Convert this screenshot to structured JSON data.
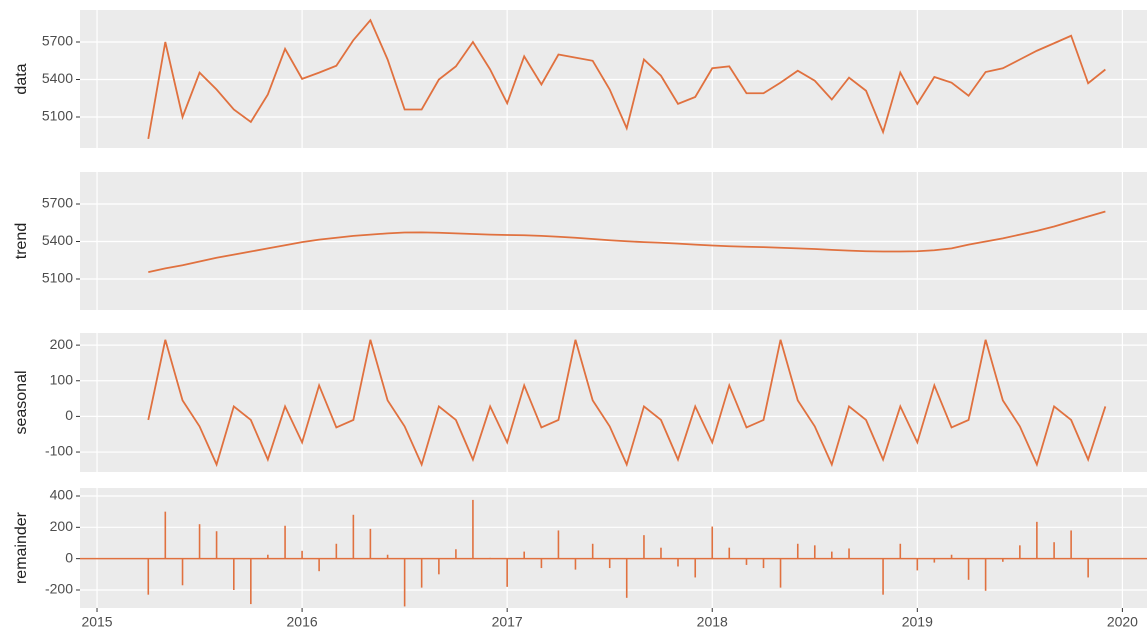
{
  "chart_data": [
    {
      "type": "line",
      "ylabel": "data",
      "color": "#e0713f",
      "grid": true,
      "x": [
        2015.25,
        2015.333,
        2015.417,
        2015.5,
        2015.583,
        2015.667,
        2015.75,
        2015.833,
        2015.917,
        2016,
        2016.083,
        2016.167,
        2016.25,
        2016.333,
        2016.417,
        2016.5,
        2016.583,
        2016.667,
        2016.75,
        2016.833,
        2016.917,
        2017,
        2017.083,
        2017.167,
        2017.25,
        2017.333,
        2017.417,
        2017.5,
        2017.583,
        2017.667,
        2017.75,
        2017.833,
        2017.917,
        2018,
        2018.083,
        2018.167,
        2018.25,
        2018.333,
        2018.417,
        2018.5,
        2018.583,
        2018.667,
        2018.75,
        2018.833,
        2018.917,
        2019,
        2019.083,
        2019.167,
        2019.25,
        2019.333,
        2019.417,
        2019.5,
        2019.583,
        2019.667,
        2019.75,
        2019.833,
        2019.917
      ],
      "values": [
        4925,
        5700,
        5100,
        5455,
        5320,
        5160,
        5060,
        5280,
        5645,
        5405,
        5455,
        5510,
        5715,
        5875,
        5560,
        5160,
        5160,
        5400,
        5505,
        5700,
        5480,
        5210,
        5585,
        5360,
        5600,
        5575,
        5550,
        5320,
        5010,
        5560,
        5430,
        5205,
        5260,
        5490,
        5505,
        5290,
        5290,
        5375,
        5470,
        5390,
        5240,
        5415,
        5310,
        4980,
        5455,
        5205,
        5420,
        5375,
        5270,
        5460,
        5490,
        5560,
        5630,
        5690,
        5750,
        5370,
        5480
      ],
      "xlim": [
        2014.917,
        2020.12
      ],
      "xticks": [
        2015,
        2016,
        2017,
        2018,
        2019,
        2020
      ],
      "ylim": [
        4852,
        5956
      ],
      "yticks": [
        5100,
        5400,
        5700
      ]
    },
    {
      "type": "line",
      "ylabel": "trend",
      "color": "#e0713f",
      "grid": true,
      "x": [
        2015.25,
        2015.333,
        2015.417,
        2015.5,
        2015.583,
        2015.667,
        2015.75,
        2015.833,
        2015.917,
        2016,
        2016.083,
        2016.167,
        2016.25,
        2016.333,
        2016.417,
        2016.5,
        2016.583,
        2016.667,
        2016.75,
        2016.833,
        2016.917,
        2017,
        2017.083,
        2017.167,
        2017.25,
        2017.333,
        2017.417,
        2017.5,
        2017.583,
        2017.667,
        2017.75,
        2017.833,
        2017.917,
        2018,
        2018.083,
        2018.167,
        2018.25,
        2018.333,
        2018.417,
        2018.5,
        2018.583,
        2018.667,
        2018.75,
        2018.833,
        2018.917,
        2019,
        2019.083,
        2019.167,
        2019.25,
        2019.333,
        2019.417,
        2019.5,
        2019.583,
        2019.667,
        2019.75,
        2019.833,
        2019.917
      ],
      "values": [
        5155,
        5185,
        5210,
        5240,
        5270,
        5295,
        5320,
        5345,
        5370,
        5395,
        5415,
        5430,
        5445,
        5455,
        5465,
        5472,
        5473,
        5470,
        5465,
        5460,
        5455,
        5452,
        5450,
        5445,
        5438,
        5430,
        5420,
        5410,
        5402,
        5395,
        5390,
        5383,
        5375,
        5368,
        5362,
        5358,
        5355,
        5350,
        5345,
        5340,
        5333,
        5327,
        5322,
        5320,
        5320,
        5322,
        5330,
        5345,
        5375,
        5400,
        5425,
        5455,
        5485,
        5520,
        5560,
        5600,
        5640
      ],
      "xlim": [
        2014.917,
        2020.12
      ],
      "xticks": [
        2015,
        2016,
        2017,
        2018,
        2019,
        2020
      ],
      "ylim": [
        4852,
        5956
      ],
      "yticks": [
        5100,
        5400,
        5700
      ]
    },
    {
      "type": "line",
      "ylabel": "seasonal",
      "color": "#e0713f",
      "grid": true,
      "x": [
        2015.25,
        2015.333,
        2015.417,
        2015.5,
        2015.583,
        2015.667,
        2015.75,
        2015.833,
        2015.917,
        2016,
        2016.083,
        2016.167,
        2016.25,
        2016.333,
        2016.417,
        2016.5,
        2016.583,
        2016.667,
        2016.75,
        2016.833,
        2016.917,
        2017,
        2017.083,
        2017.167,
        2017.25,
        2017.333,
        2017.417,
        2017.5,
        2017.583,
        2017.667,
        2017.75,
        2017.833,
        2017.917,
        2018,
        2018.083,
        2018.167,
        2018.25,
        2018.333,
        2018.417,
        2018.5,
        2018.583,
        2018.667,
        2018.75,
        2018.833,
        2018.917,
        2019,
        2019.083,
        2019.167,
        2019.25,
        2019.333,
        2019.417,
        2019.5,
        2019.583,
        2019.667,
        2019.75,
        2019.833,
        2019.917
      ],
      "values": [
        -10,
        215,
        45,
        -28,
        -135,
        28,
        -10,
        -121,
        28,
        -73,
        87,
        -31,
        -10,
        215,
        45,
        -28,
        -135,
        28,
        -10,
        -121,
        28,
        -73,
        87,
        -31,
        -10,
        215,
        45,
        -28,
        -135,
        28,
        -10,
        -121,
        28,
        -73,
        87,
        -31,
        -10,
        215,
        45,
        -28,
        -135,
        28,
        -10,
        -121,
        28,
        -73,
        87,
        -31,
        -10,
        215,
        45,
        -28,
        -135,
        28,
        -10,
        -121,
        28
      ],
      "xlim": [
        2014.917,
        2020.12
      ],
      "xticks": [
        2015,
        2016,
        2017,
        2018,
        2019,
        2020
      ],
      "ylim": [
        -156,
        234
      ],
      "yticks": [
        -100,
        0,
        100,
        200
      ]
    },
    {
      "type": "bar",
      "ylabel": "remainder",
      "color": "#e0713f",
      "grid": true,
      "x": [
        2015.25,
        2015.333,
        2015.417,
        2015.5,
        2015.583,
        2015.667,
        2015.75,
        2015.833,
        2015.917,
        2016,
        2016.083,
        2016.167,
        2016.25,
        2016.333,
        2016.417,
        2016.5,
        2016.583,
        2016.667,
        2016.75,
        2016.833,
        2016.917,
        2017,
        2017.083,
        2017.167,
        2017.25,
        2017.333,
        2017.417,
        2017.5,
        2017.583,
        2017.667,
        2017.75,
        2017.833,
        2017.917,
        2018,
        2018.083,
        2018.167,
        2018.25,
        2018.333,
        2018.417,
        2018.5,
        2018.583,
        2018.667,
        2018.75,
        2018.833,
        2018.917,
        2019,
        2019.083,
        2019.167,
        2019.25,
        2019.333,
        2019.417,
        2019.5,
        2019.583,
        2019.667,
        2019.75,
        2019.833,
        2019.917
      ],
      "values": [
        -230,
        300,
        -170,
        220,
        175,
        -200,
        -290,
        25,
        210,
        50,
        -80,
        95,
        280,
        190,
        25,
        -305,
        -185,
        -100,
        60,
        375,
        5,
        -180,
        45,
        -60,
        180,
        -70,
        95,
        -60,
        -250,
        150,
        70,
        -50,
        -120,
        205,
        70,
        -40,
        -60,
        -185,
        95,
        85,
        45,
        65,
        0,
        -230,
        95,
        -75,
        -25,
        25,
        -135,
        -205,
        -20,
        85,
        235,
        105,
        180,
        -120,
        0
      ],
      "xlim": [
        2014.917,
        2020.12
      ],
      "xticks": [
        2015,
        2016,
        2017,
        2018,
        2019,
        2020
      ],
      "ylim": [
        -315,
        451
      ],
      "yticks": [
        -200,
        0,
        200,
        400
      ]
    }
  ]
}
